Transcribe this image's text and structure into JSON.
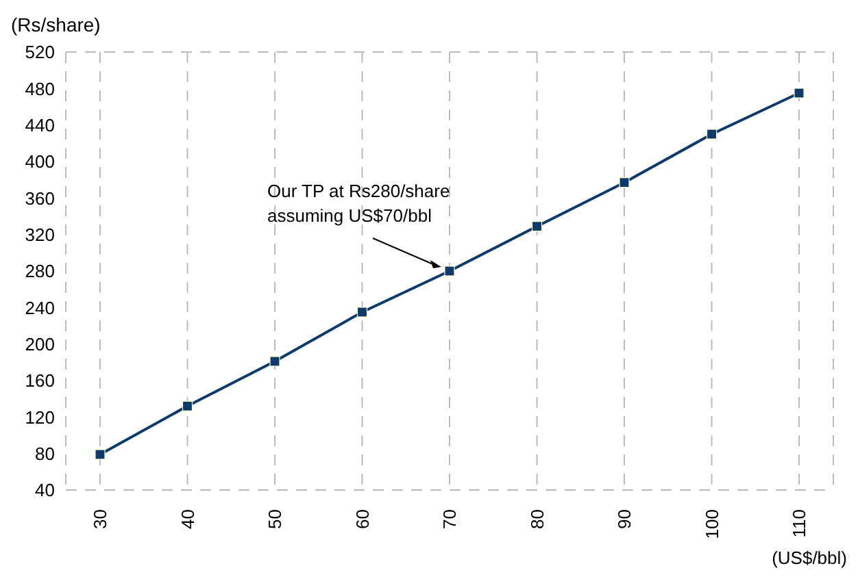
{
  "chart_data": {
    "type": "line",
    "ylabel": "(Rs/share)",
    "xlabel": "(US$/bbl)",
    "categories": [
      "30",
      "40",
      "50",
      "60",
      "70",
      "80",
      "90",
      "100",
      "110"
    ],
    "series": [
      {
        "color": "#0b3a6b",
        "values": [
          79,
          132,
          181,
          235,
          280,
          329,
          377,
          430,
          475
        ]
      }
    ],
    "ylim": [
      40,
      520
    ],
    "yticks": [
      40,
      80,
      120,
      160,
      200,
      240,
      280,
      320,
      360,
      400,
      440,
      480,
      520
    ],
    "grid": true,
    "legend": false,
    "marker": "square",
    "line_style": "solid",
    "annotations": [
      {
        "text": "Our TP at Rs280/share\nassuming US$70/bbl",
        "x": "70",
        "y": 280
      }
    ]
  }
}
